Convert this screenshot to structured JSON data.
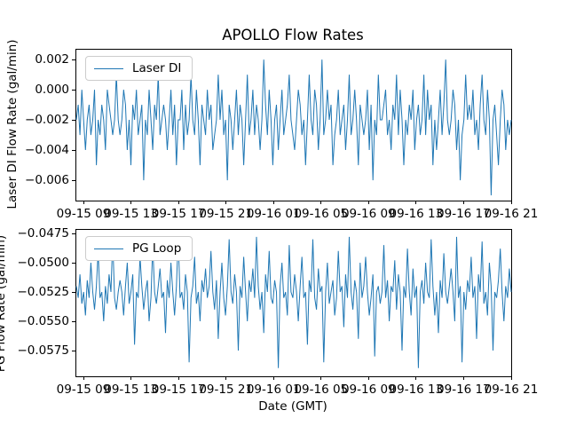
{
  "figure": {
    "title": "APOLLO Flow Rates",
    "xlabel": "Date (GMT)"
  },
  "style": {
    "line_color": "#1f77b4",
    "axes_color": "#000000",
    "legend_border_color": "#cccccc",
    "background": "#ffffff"
  },
  "chart_data": [
    {
      "type": "line",
      "title": "APOLLO Flow Rates",
      "ylabel": "Laser DI Flow Rate (gal/min)",
      "legend": {
        "label": "Laser DI",
        "position": "upper left"
      },
      "grid": false,
      "ylim": [
        -0.00735,
        0.00265
      ],
      "ytick_values": [
        0.002,
        0.0,
        -0.002,
        -0.004,
        -0.006
      ],
      "ytick_labels": [
        "0.002",
        "0.000",
        "−0.002",
        "−0.004",
        "−0.006"
      ],
      "xticks": [
        "09-15 09",
        "09-15 13",
        "09-15 17",
        "09-15 21",
        "09-16 01",
        "09-16 05",
        "09-16 09",
        "09-16 13",
        "09-16 17",
        "09-16 21"
      ],
      "series": [
        {
          "name": "Laser DI",
          "scale": 0.001,
          "values": [
            -2,
            -1,
            -3,
            0,
            -2,
            -4,
            -2,
            -1,
            -3,
            -2,
            0,
            -5,
            -2,
            -3,
            -1,
            -2,
            -4,
            0,
            -1,
            -2,
            -3,
            -2,
            1,
            -2,
            -3,
            -2,
            0,
            -1,
            -4,
            -2,
            -5,
            -1,
            -2,
            0,
            -3,
            -2,
            -1,
            -6,
            -2,
            -3,
            0,
            -2,
            -4,
            -1,
            -2,
            1,
            -3,
            -2,
            -1,
            -2,
            -4,
            -2,
            0,
            -3,
            -1,
            -5,
            -2,
            -2,
            0,
            -4,
            -1,
            -3,
            -2,
            1,
            -2,
            -3,
            0,
            -2,
            -5,
            -1,
            -2,
            -3,
            0,
            -2,
            -1,
            -4,
            -3,
            -2,
            1,
            -2,
            0,
            -3,
            -2,
            -6,
            -1,
            -2,
            -4,
            -2,
            0,
            -3,
            -1,
            -2,
            -5,
            -2,
            1,
            -3,
            -2,
            0,
            -3,
            -1,
            -2,
            -4,
            -2,
            2,
            -1,
            -3,
            0,
            -2,
            -5,
            -2,
            -1,
            -4,
            -2,
            0,
            -3,
            -2,
            -1,
            1,
            -2,
            -3,
            -4,
            -2,
            0,
            -1,
            -3,
            -2,
            -5,
            -2,
            1,
            -2,
            -3,
            0,
            -1,
            -4,
            -2,
            2,
            -3,
            -2,
            0,
            -2,
            -1,
            -5,
            -3,
            -2,
            0,
            -3,
            -2,
            -1,
            -4,
            -2,
            1,
            -3,
            -2,
            0,
            -2,
            -5,
            -1,
            -2,
            -3,
            -2,
            0,
            -4,
            -1,
            -6,
            -2,
            -3,
            1,
            -2,
            -2,
            -1,
            0,
            -3,
            -2,
            -4,
            -1,
            -2,
            1,
            -3,
            0,
            -2,
            -5,
            -2,
            -3,
            -1,
            -2,
            0,
            -4,
            -2,
            -1,
            -3,
            -2,
            1,
            -3,
            0,
            -2,
            -1,
            -5,
            -2,
            -4,
            -2,
            0,
            -3,
            -1,
            2,
            -2,
            -3,
            -2,
            0,
            -1,
            -4,
            -2,
            -6,
            -3,
            -2,
            1,
            -2,
            -1,
            -2,
            0,
            -3,
            -2,
            -4,
            -1,
            1,
            -2,
            -3,
            0,
            -2,
            -7,
            -2,
            -1,
            -3,
            -5,
            -2,
            0,
            -1,
            -4,
            -2,
            -3,
            -2
          ]
        }
      ]
    },
    {
      "type": "line",
      "ylabel": "PG Flow Rate (gal/min)",
      "xlabel": "Date (GMT)",
      "legend": {
        "label": "PG Loop",
        "position": "upper left"
      },
      "grid": false,
      "ylim": [
        -0.0597,
        -0.0472
      ],
      "ytick_values": [
        -0.0475,
        -0.05,
        -0.0525,
        -0.055,
        -0.0575
      ],
      "ytick_labels": [
        "−0.0475",
        "−0.0500",
        "−0.0525",
        "−0.0550",
        "−0.0575"
      ],
      "xticks": [
        "09-15 09",
        "09-15 13",
        "09-15 17",
        "09-15 21",
        "09-16 01",
        "09-16 05",
        "09-16 09",
        "09-16 13",
        "09-16 17",
        "09-16 21"
      ],
      "series": [
        {
          "name": "PG Loop",
          "scale": 0.0001,
          "values": [
            -520,
            -530,
            -510,
            -535,
            -525,
            -545,
            -515,
            -530,
            -500,
            -525,
            -540,
            -520,
            -490,
            -530,
            -525,
            -550,
            -520,
            -535,
            -510,
            -525,
            -480,
            -530,
            -540,
            -525,
            -515,
            -525,
            -545,
            -520,
            -500,
            -535,
            -525,
            -510,
            -570,
            -525,
            -530,
            -495,
            -520,
            -540,
            -525,
            -515,
            -550,
            -530,
            -485,
            -525,
            -535,
            -520,
            -505,
            -530,
            -525,
            -560,
            -515,
            -530,
            -500,
            -525,
            -545,
            -520,
            -478,
            -530,
            -525,
            -540,
            -510,
            -525,
            -585,
            -530,
            -520,
            -495,
            -535,
            -525,
            -550,
            -515,
            -525,
            -505,
            -530,
            -520,
            -490,
            -525,
            -540,
            -515,
            -565,
            -525,
            -500,
            -530,
            -545,
            -520,
            -480,
            -525,
            -535,
            -510,
            -525,
            -575,
            -520,
            -530,
            -495,
            -525,
            -550,
            -515,
            -525,
            -505,
            -530,
            -478,
            -520,
            -540,
            -525,
            -560,
            -510,
            -525,
            -490,
            -530,
            -535,
            -515,
            -525,
            -590,
            -520,
            -500,
            -530,
            -525,
            -545,
            -485,
            -525,
            -530,
            -510,
            -525,
            -550,
            -520,
            -495,
            -530,
            -525,
            -570,
            -515,
            -525,
            -480,
            -530,
            -540,
            -505,
            -525,
            -520,
            -585,
            -525,
            -500,
            -535,
            -525,
            -515,
            -545,
            -530,
            -490,
            -525,
            -520,
            -555,
            -510,
            -530,
            -478,
            -525,
            -540,
            -515,
            -525,
            -565,
            -500,
            -530,
            -520,
            -495,
            -525,
            -545,
            -530,
            -510,
            -580,
            -525,
            -520,
            -535,
            -525,
            -485,
            -530,
            -515,
            -550,
            -520,
            -525,
            -498,
            -540,
            -510,
            -525,
            -575,
            -520,
            -530,
            -488,
            -525,
            -545,
            -505,
            -530,
            -520,
            -590,
            -525,
            -515,
            -535,
            -500,
            -525,
            -530,
            -480,
            -520,
            -545,
            -525,
            -560,
            -515,
            -530,
            -492,
            -525,
            -535,
            -520,
            -505,
            -525,
            -550,
            -478,
            -530,
            -520,
            -585,
            -525,
            -540,
            -515,
            -525,
            -495,
            -530,
            -520,
            -565,
            -510,
            -525,
            -482,
            -535,
            -525,
            -545,
            -500,
            -520,
            -575,
            -525,
            -530,
            -515,
            -488,
            -525,
            -550,
            -520,
            -530,
            -505,
            -525
          ]
        }
      ]
    }
  ]
}
